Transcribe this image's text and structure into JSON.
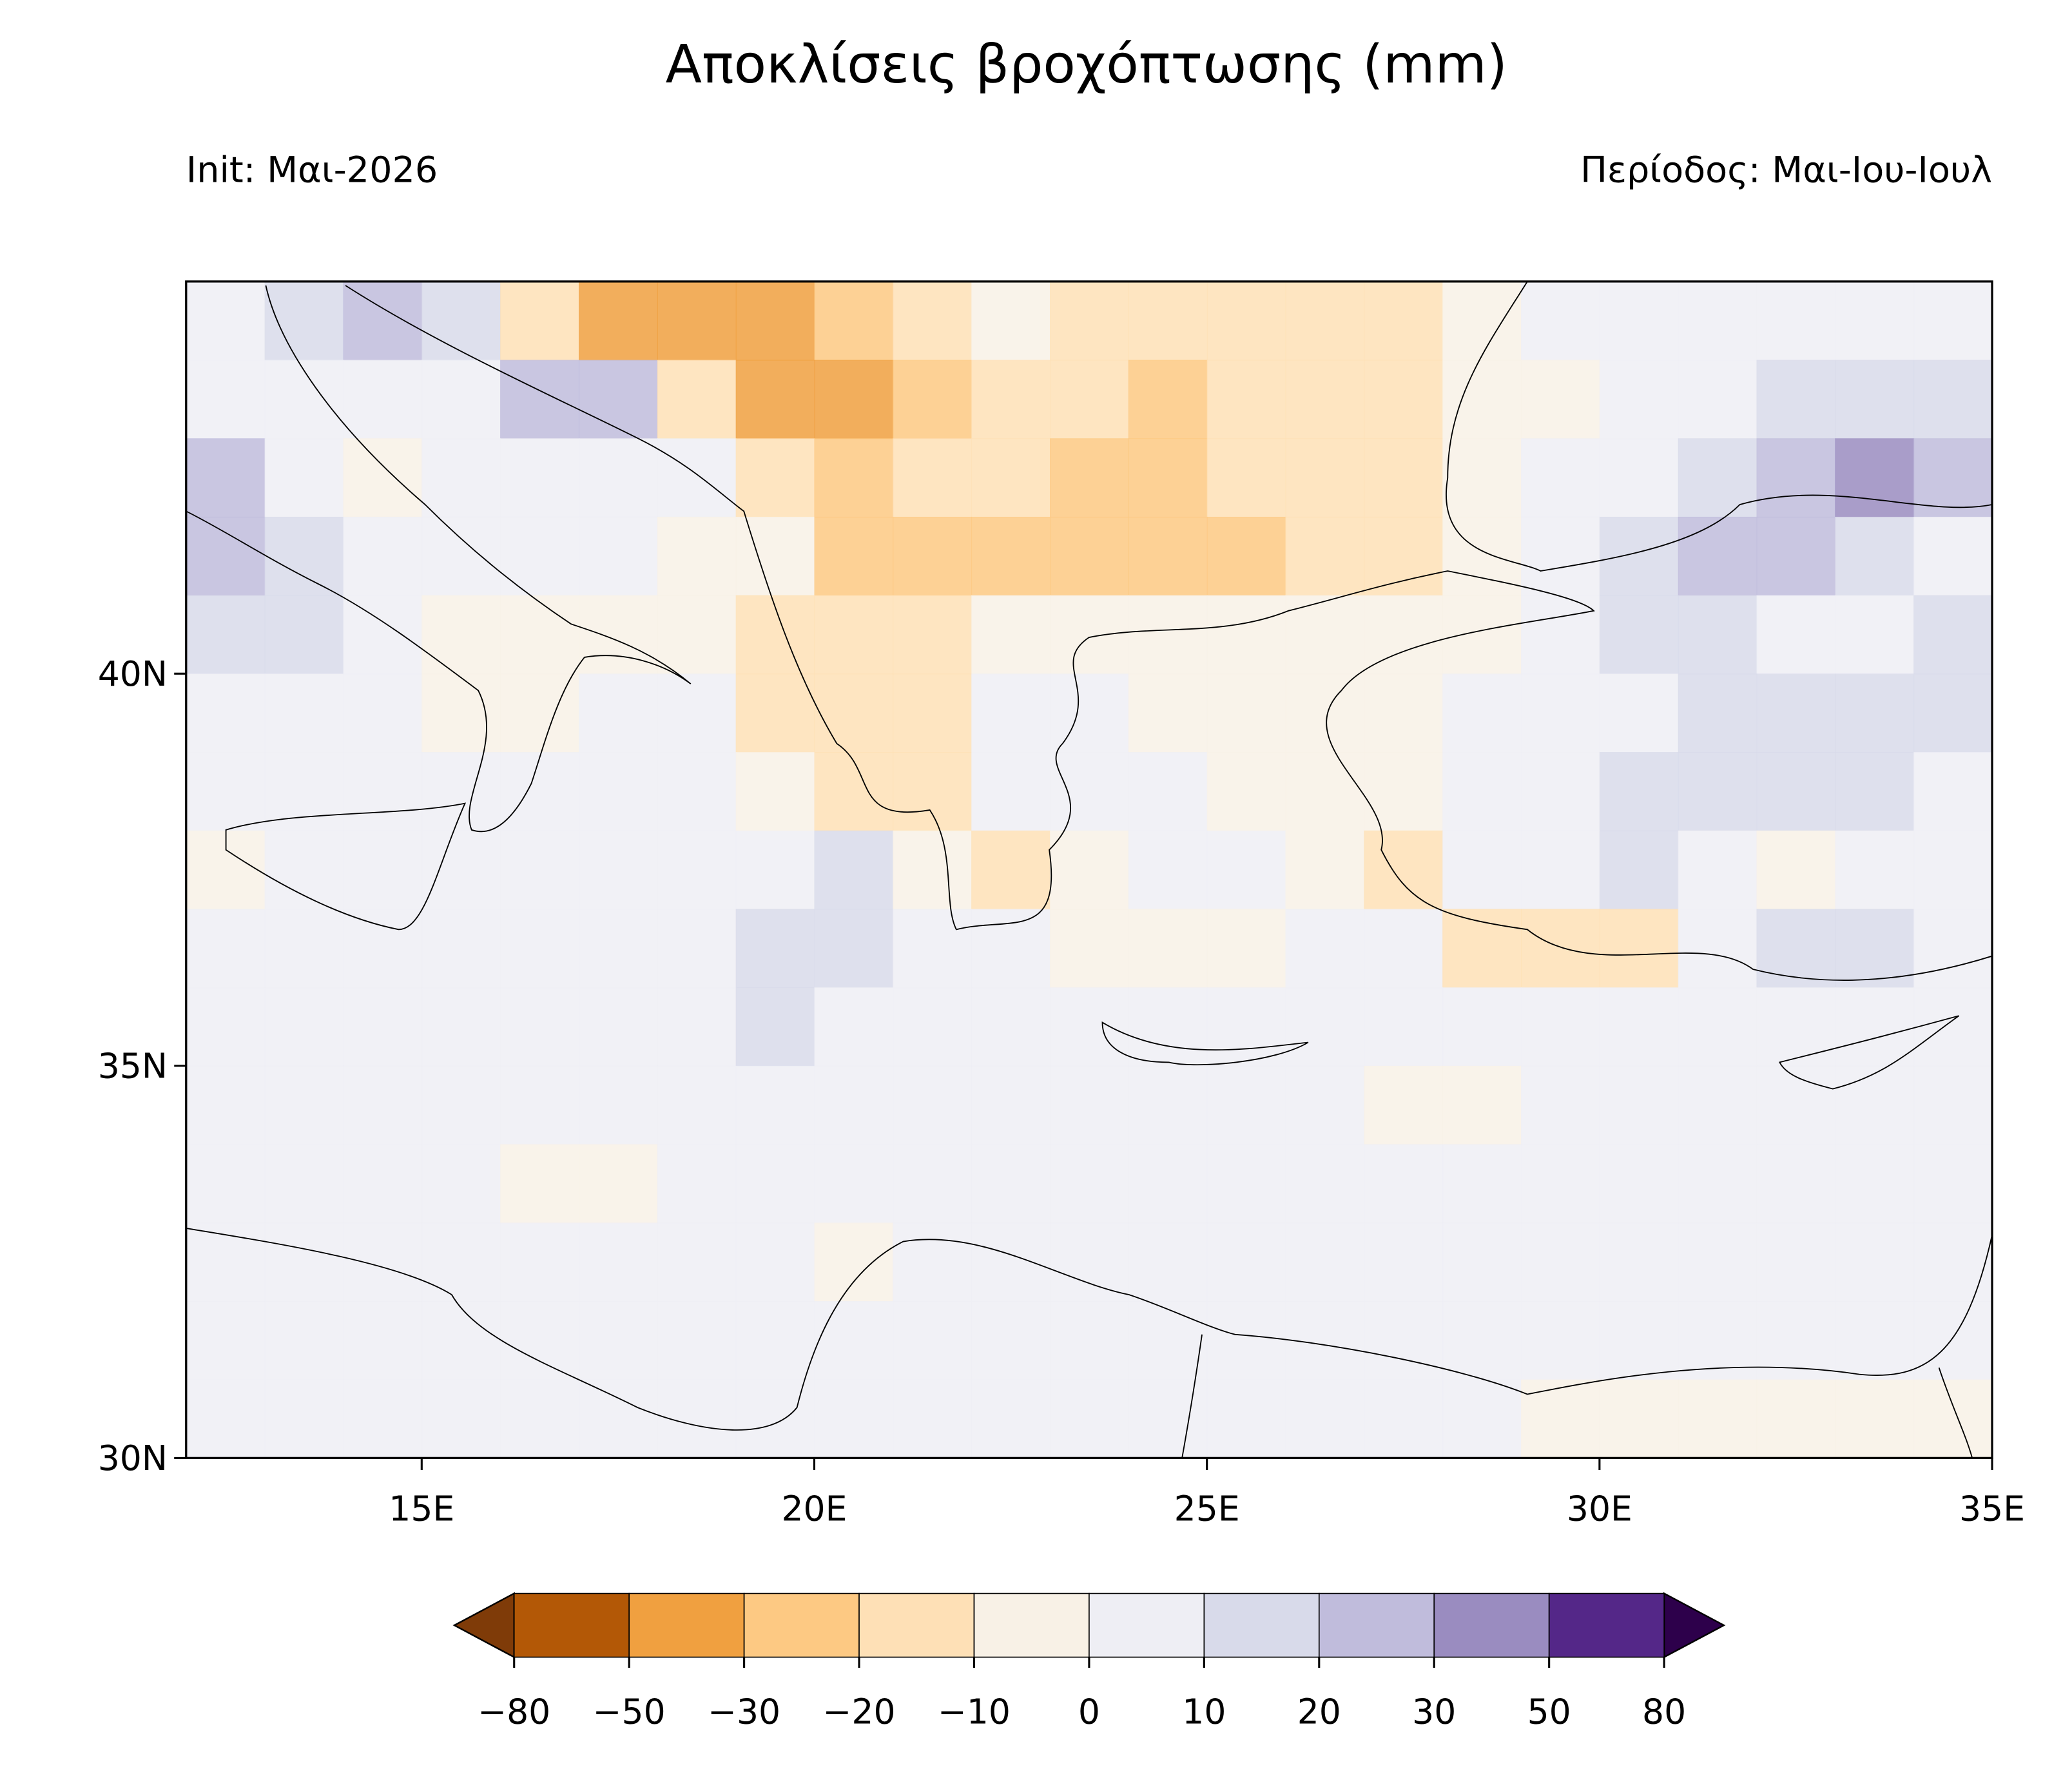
{
  "chart_data": {
    "type": "heatmap",
    "title": "Αποκλίσεις βροχόπτωσης (mm)",
    "subtitle_left": "Init: Μαι-2026",
    "subtitle_right": "Περίοδος: Μαι-Ιου-Ιουλ",
    "xlim": [
      12,
      35
    ],
    "ylim": [
      30,
      45
    ],
    "xticks": [
      {
        "value": 15,
        "label": "15E"
      },
      {
        "value": 20,
        "label": "20E"
      },
      {
        "value": 25,
        "label": "25E"
      },
      {
        "value": 30,
        "label": "30E"
      },
      {
        "value": 35,
        "label": "35E"
      }
    ],
    "yticks": [
      {
        "value": 30,
        "label": "30N"
      },
      {
        "value": 35,
        "label": "35N"
      },
      {
        "value": 40,
        "label": "40N"
      }
    ],
    "x_edges": [
      12,
      13,
      14,
      15,
      16,
      17,
      18,
      19,
      20,
      21,
      22,
      23,
      24,
      25,
      26,
      27,
      28,
      29,
      30,
      31,
      32,
      33,
      34,
      35
    ],
    "y_edges": [
      45,
      44,
      43,
      42,
      41,
      40,
      39,
      38,
      37,
      36,
      35,
      34,
      33,
      32,
      31,
      30
    ],
    "values": [
      [
        5,
        15,
        25,
        15,
        -15,
        -35,
        -35,
        -35,
        -25,
        -15,
        -5,
        -12,
        -12,
        -12,
        -12,
        -12,
        -5,
        2,
        5,
        5,
        8,
        8,
        10
      ],
      [
        8,
        3,
        8,
        8,
        25,
        25,
        -15,
        -35,
        -40,
        -25,
        -15,
        -15,
        -20,
        -15,
        -15,
        -12,
        -5,
        -3,
        5,
        8,
        15,
        20,
        20
      ],
      [
        25,
        3,
        -3,
        3,
        5,
        5,
        8,
        -15,
        -25,
        -15,
        -15,
        -22,
        -22,
        -15,
        -15,
        -12,
        -5,
        2,
        8,
        15,
        22,
        35,
        25
      ],
      [
        30,
        20,
        3,
        3,
        3,
        3,
        -2,
        -5,
        -20,
        -20,
        -22,
        -22,
        -25,
        -22,
        -15,
        -12,
        -5,
        5,
        15,
        30,
        22,
        12,
        8
      ],
      [
        12,
        12,
        8,
        -3,
        -2,
        -3,
        -5,
        -15,
        -18,
        -10,
        -8,
        -8,
        -8,
        -8,
        -8,
        -6,
        -3,
        8,
        15,
        12,
        8,
        5,
        15
      ],
      [
        8,
        8,
        8,
        -5,
        -3,
        3,
        5,
        -15,
        -15,
        -10,
        5,
        3,
        -5,
        -5,
        -5,
        -3,
        2,
        8,
        10,
        12,
        15,
        20,
        18
      ],
      [
        2,
        2,
        2,
        2,
        2,
        2,
        3,
        -3,
        -15,
        -18,
        3,
        3,
        3,
        -3,
        -5,
        -8,
        2,
        5,
        12,
        15,
        15,
        15,
        10
      ],
      [
        -2,
        2,
        2,
        2,
        2,
        2,
        2,
        5,
        18,
        -5,
        -10,
        -5,
        3,
        5,
        -8,
        -15,
        2,
        3,
        15,
        10,
        -8,
        8,
        5
      ],
      [
        2,
        2,
        2,
        2,
        2,
        2,
        2,
        15,
        18,
        8,
        5,
        -5,
        -5,
        -5,
        3,
        3,
        -10,
        -15,
        -15,
        5,
        12,
        12,
        8
      ],
      [
        2,
        2,
        2,
        2,
        2,
        2,
        3,
        12,
        2,
        2,
        2,
        2,
        2,
        2,
        2,
        2,
        2,
        2,
        2,
        5,
        8,
        8,
        2
      ],
      [
        2,
        2,
        2,
        2,
        2,
        2,
        3,
        4,
        4,
        3,
        3,
        2,
        2,
        2,
        2,
        -2,
        -2,
        2,
        4,
        4,
        6,
        6,
        3
      ],
      [
        2,
        2,
        2,
        2,
        -3,
        -3,
        2,
        2,
        2,
        2,
        5,
        2,
        2,
        2,
        2,
        2,
        2,
        2,
        2,
        3,
        3,
        3,
        3
      ],
      [
        2,
        2,
        2,
        2,
        2,
        2,
        2,
        2,
        -2,
        2,
        10,
        4,
        2,
        2,
        2,
        2,
        2,
        2,
        2,
        2,
        3,
        3,
        3
      ],
      [
        8,
        8,
        5,
        2,
        2,
        2,
        2,
        2,
        2,
        2,
        2,
        2,
        2,
        2,
        2,
        2,
        2,
        2,
        2,
        2,
        2,
        2,
        2
      ],
      [
        2,
        2,
        2,
        5,
        5,
        5,
        3,
        2,
        2,
        2,
        2,
        2,
        2,
        2,
        2,
        2,
        2,
        -2,
        -2,
        -2,
        -2,
        -2,
        -2
      ]
    ],
    "colorbar": {
      "ticks": [
        {
          "value": -80,
          "label": "−80"
        },
        {
          "value": -50,
          "label": "−50"
        },
        {
          "value": -30,
          "label": "−30"
        },
        {
          "value": -20,
          "label": "−20"
        },
        {
          "value": -10,
          "label": "−10"
        },
        0,
        10,
        20,
        30,
        50,
        80
      ],
      "colors": [
        "#b35806",
        "#f0a040",
        "#fdc983",
        "#fee0b6",
        "#f8f1e6",
        "#eeeef4",
        "#d8daea",
        "#c0bcdc",
        "#9a8cc0",
        "#542788"
      ],
      "under_color": "#7f3b08",
      "over_color": "#2d004b"
    }
  }
}
